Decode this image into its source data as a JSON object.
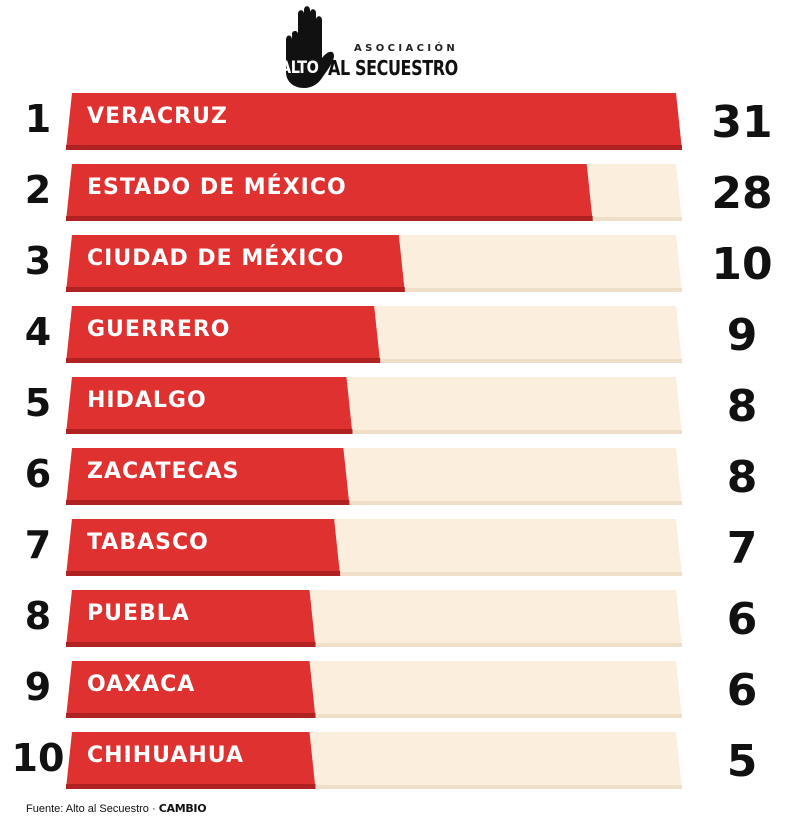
{
  "logo": {
    "small": "ASOCIACIÓN",
    "alto": "ALTO",
    "main": "AL SECUESTRO",
    "icon": "raised-hand-icon"
  },
  "source": {
    "text": "Fuente: Alto al Secuestro ·",
    "brand": "CAMBIO"
  },
  "colors": {
    "bar": "#e03131",
    "bar_shadow": "#b02222",
    "track": "#fbeedd",
    "track_shadow": "#efdfc9"
  },
  "chart_data": {
    "type": "bar",
    "orientation": "horizontal",
    "ranks": [
      "1",
      "2",
      "3",
      "4",
      "5",
      "6",
      "7",
      "8",
      "9",
      "10"
    ],
    "categories": [
      "VERACRUZ",
      "ESTADO DE MÉXICO",
      "CIUDAD DE MÉXICO",
      "GUERRERO",
      "HIDALGO",
      "ZACATECAS",
      "TABASCO",
      "PUEBLA",
      "OAXACA",
      "CHIHUAHUA"
    ],
    "values": [
      31,
      28,
      10,
      9,
      8,
      8,
      7,
      6,
      6,
      5
    ],
    "value_labels": [
      "31",
      "28",
      "10",
      "9",
      "8",
      "8",
      "7",
      "6",
      "6",
      "5"
    ],
    "fill_fraction": [
      1.0,
      0.855,
      0.55,
      0.51,
      0.465,
      0.46,
      0.445,
      0.405,
      0.405,
      0.405
    ],
    "title": "",
    "xlabel": "",
    "ylabel": ""
  }
}
